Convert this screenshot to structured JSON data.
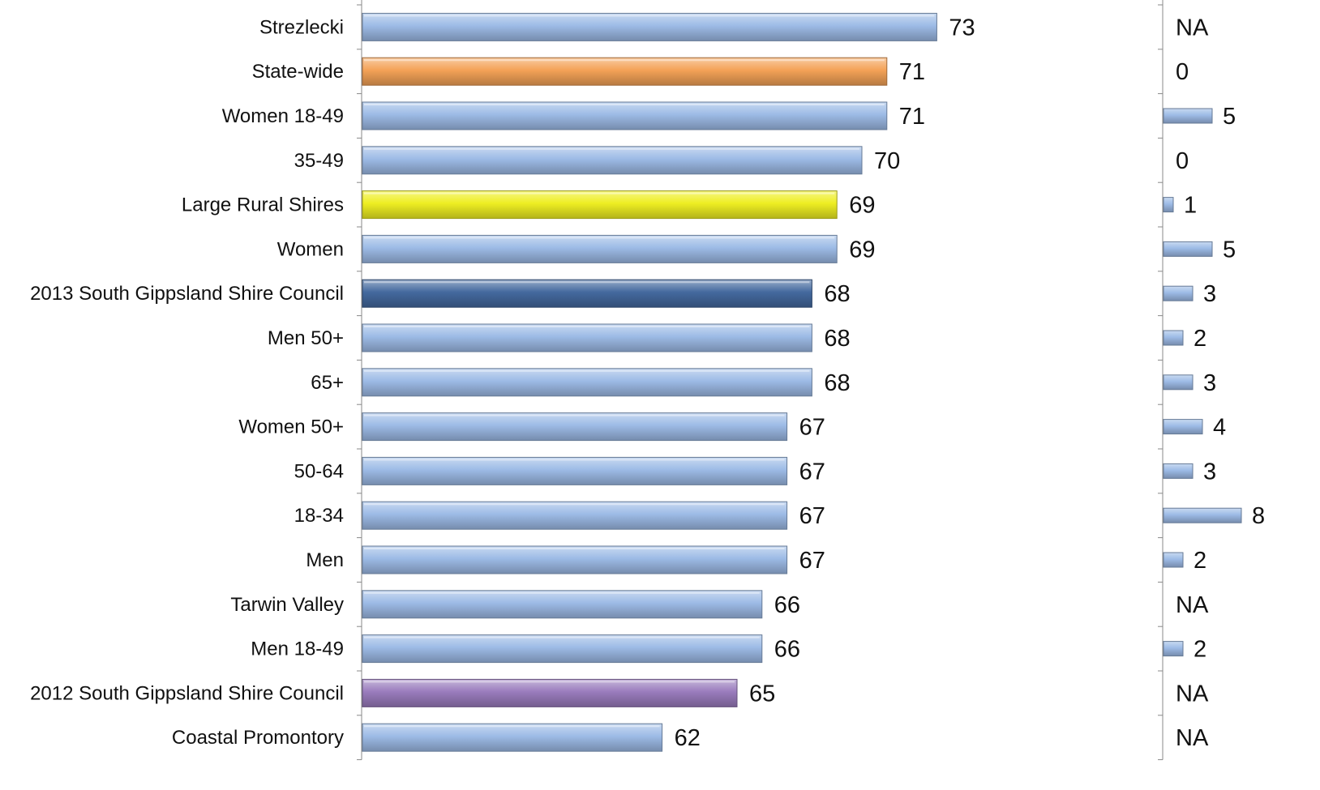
{
  "chart_data": {
    "type": "bar",
    "orientation": "horizontal",
    "categories": [
      "Strezlecki",
      "State-wide",
      "Women 18-49",
      "35-49",
      "Large Rural Shires",
      "Women",
      "2013 South Gippsland Shire Council",
      "Men 50+",
      "65+",
      "Women 50+",
      "50-64",
      "18-34",
      "Men",
      "Tarwin Valley",
      "Men 18-49",
      "2012 South Gippsland Shire Council",
      "Coastal Promontory"
    ],
    "values": [
      73,
      71,
      71,
      70,
      69,
      69,
      68,
      68,
      68,
      67,
      67,
      67,
      67,
      66,
      66,
      65,
      62
    ],
    "value_labels": [
      "73",
      "71",
      "71",
      "70",
      "69",
      "69",
      "68",
      "68",
      "68",
      "67",
      "67",
      "67",
      "67",
      "66",
      "66",
      "65",
      "62"
    ],
    "bar_colors": [
      "#9dbbe6",
      "#f4a257",
      "#9dbbe6",
      "#9dbbe6",
      "#eeee22",
      "#9dbbe6",
      "#44699e",
      "#9dbbe6",
      "#9dbbe6",
      "#9dbbe6",
      "#9dbbe6",
      "#9dbbe6",
      "#9dbbe6",
      "#9dbbe6",
      "#9dbbe6",
      "#9a7cbd",
      "#9dbbe6"
    ],
    "xlim": [
      50,
      75
    ],
    "secondary": {
      "type": "bar",
      "values": [
        null,
        0,
        5,
        0,
        1,
        5,
        3,
        2,
        3,
        4,
        3,
        8,
        2,
        null,
        2,
        null,
        null
      ],
      "value_labels": [
        "NA",
        "0",
        "5",
        "0",
        "1",
        "5",
        "3",
        "2",
        "3",
        "4",
        "3",
        "8",
        "2",
        "NA",
        "2",
        "NA",
        "NA"
      ],
      "xlim": [
        0,
        10
      ],
      "bar_color": "#9dbbe6"
    },
    "title": "",
    "xlabel": "",
    "ylabel": "",
    "grid": false,
    "legend": "none"
  }
}
